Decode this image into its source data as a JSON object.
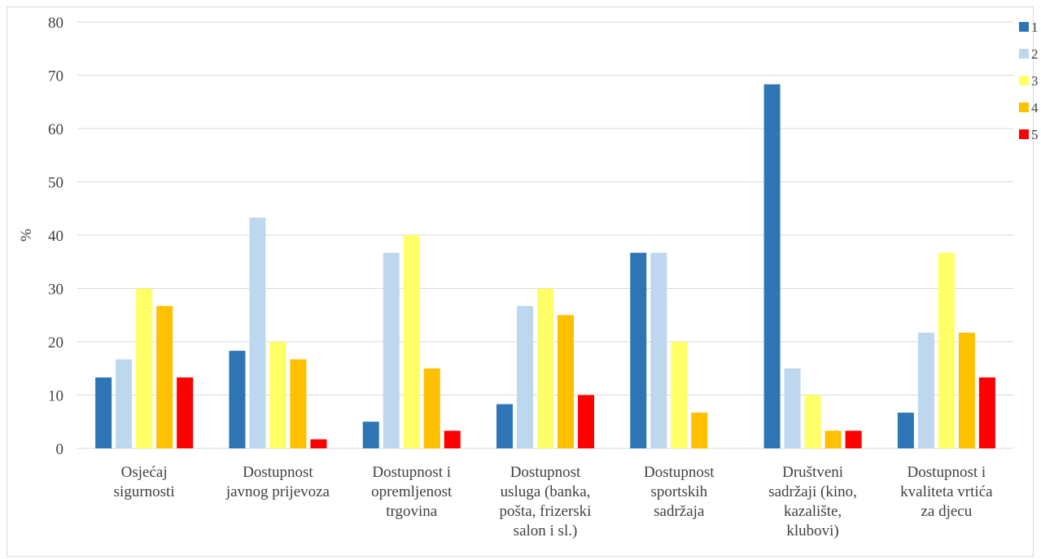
{
  "chart_data": {
    "type": "bar",
    "title": "",
    "xlabel": "",
    "ylabel": "%",
    "ylim": [
      0,
      80
    ],
    "yticks": [
      0,
      10,
      20,
      30,
      40,
      50,
      60,
      70,
      80
    ],
    "grid": true,
    "legend_position": "right",
    "categories": [
      [
        "Osjećaj",
        "sigurnosti"
      ],
      [
        "Dostupnost",
        "javnog prijevoza"
      ],
      [
        "Dostupnost i",
        "opremljenost",
        "trgovina"
      ],
      [
        "Dostupnost",
        "usluga (banka,",
        "pošta, frizerski",
        "salon i sl.)"
      ],
      [
        "Dostupnost",
        "sportskih",
        "sadržaja"
      ],
      [
        "Društveni",
        "sadržaji (kino,",
        "kazalište,",
        "klubovi)"
      ],
      [
        "Dostupnost i",
        "kvaliteta vrtića",
        "za djecu"
      ]
    ],
    "series": [
      {
        "name": "1",
        "color": "#2e75b6",
        "values": [
          13.3,
          18.3,
          5.0,
          8.3,
          36.7,
          68.3,
          6.7
        ]
      },
      {
        "name": "2",
        "color": "#bdd7ee",
        "values": [
          16.7,
          43.3,
          36.7,
          26.7,
          36.7,
          15.0,
          21.7
        ]
      },
      {
        "name": "3",
        "color": "#ffff66",
        "values": [
          30.0,
          20.0,
          40.0,
          30.0,
          20.0,
          10.0,
          36.7
        ]
      },
      {
        "name": "4",
        "color": "#ffc000",
        "values": [
          26.7,
          16.7,
          15.0,
          25.0,
          6.7,
          3.3,
          21.7
        ]
      },
      {
        "name": "5",
        "color": "#ff0000",
        "values": [
          13.3,
          1.7,
          3.3,
          10.0,
          0,
          3.3,
          13.3
        ]
      }
    ]
  }
}
